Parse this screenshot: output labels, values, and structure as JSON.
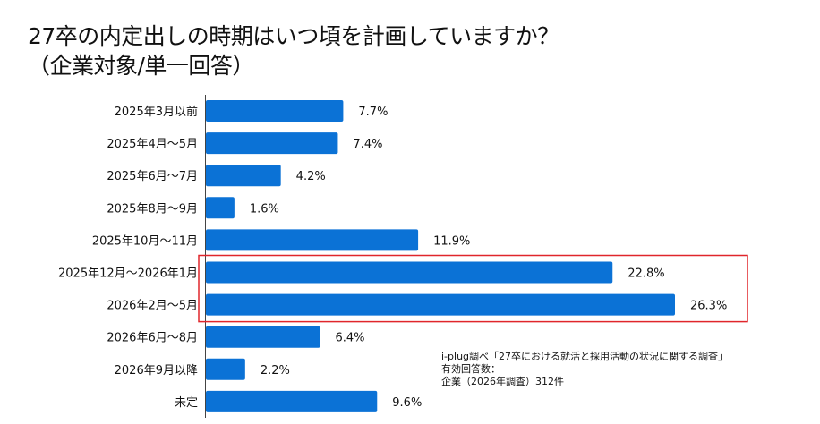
{
  "chart_data": {
    "type": "bar",
    "orientation": "horizontal",
    "title": "27卒の内定出しの時期はいつ頃を計画していますか？\n（企業対象/単一回答）",
    "categories": [
      "2025年3月以前",
      "2025年4月～5月",
      "2025年6月～7月",
      "2025年8月～9月",
      "2025年10月～11月",
      "2025年12月～2026年1月",
      "2026年2月～5月",
      "2026年6月～8月",
      "2026年9月以降",
      "未定"
    ],
    "values": [
      7.7,
      7.4,
      4.2,
      1.6,
      11.9,
      22.8,
      26.3,
      6.4,
      2.2,
      9.6
    ],
    "value_labels": [
      "7.7%",
      "7.4%",
      "4.2%",
      "1.6%",
      "11.9%",
      "22.8%",
      "26.3%",
      "6.4%",
      "2.2%",
      "9.6%"
    ],
    "unit": "%",
    "xlim": [
      0,
      30
    ],
    "grid": false,
    "bar_color": "#0b72d6",
    "highlight": {
      "categories": [
        "2025年12月～2026年1月",
        "2026年2月～5月"
      ],
      "color": "#e0262b"
    },
    "source_note": [
      "i-plug調べ「27卒における就活と採用活動の状況に関する調査」",
      "有効回答数：",
      "企業（2026年調査）312件"
    ]
  }
}
